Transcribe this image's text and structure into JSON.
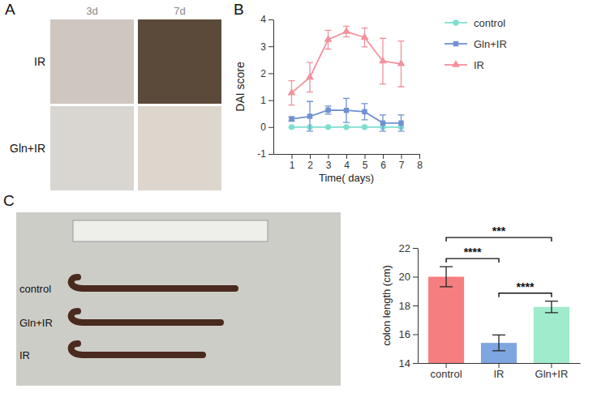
{
  "panel_letters": [
    "A",
    "B",
    "C"
  ],
  "photo_a": {
    "column_labels": [
      "3d",
      "7d"
    ],
    "row_labels": [
      "IR",
      "Gln+IR"
    ]
  },
  "photo_c": {
    "row_labels": [
      "control",
      "Gln+IR",
      "IR"
    ]
  },
  "chart_data": [
    {
      "type": "line",
      "x_label": "Time( days)",
      "y_label": "DAI score",
      "x": [
        1,
        2,
        3,
        4,
        5,
        6,
        7
      ],
      "xlim": [
        0,
        8
      ],
      "xticks": [
        1,
        2,
        3,
        4,
        5,
        6,
        7,
        8
      ],
      "ylim": [
        -1,
        4
      ],
      "yticks": [
        -1,
        0,
        1,
        2,
        3,
        4
      ],
      "legend": "right",
      "series": [
        {
          "name": "control",
          "color": "#7fdfcf",
          "marker": "circle",
          "values": [
            0,
            0,
            0,
            0,
            0,
            0,
            0
          ],
          "errors": [
            0,
            0,
            0,
            0,
            0,
            0,
            0
          ]
        },
        {
          "name": "Gln+IR",
          "color": "#7091d0",
          "marker": "square",
          "values": [
            0.3,
            0.4,
            0.63,
            0.62,
            0.57,
            0.15,
            0.15
          ],
          "errors": [
            0.08,
            0.55,
            0.15,
            0.45,
            0.3,
            0.3,
            0.3
          ]
        },
        {
          "name": "IR",
          "color": "#f3919e",
          "marker": "triangle",
          "values": [
            1.27,
            1.85,
            3.25,
            3.55,
            3.33,
            2.45,
            2.35
          ],
          "errors": [
            0.45,
            0.55,
            0.35,
            0.2,
            0.35,
            0.85,
            0.85
          ]
        }
      ]
    },
    {
      "type": "bar",
      "y_label": "colon length (cm)",
      "categories": [
        "control",
        "IR",
        "Gln+IR"
      ],
      "values": [
        20.0,
        15.4,
        17.9
      ],
      "errors": [
        0.7,
        0.55,
        0.4
      ],
      "colors": [
        "#f57e80",
        "#7ea6e0",
        "#a0ebcc"
      ],
      "ylim": [
        14,
        22
      ],
      "yticks": [
        14,
        16,
        18,
        20,
        22
      ],
      "annotations": [
        {
          "text": "****",
          "between": [
            "control",
            "IR"
          ]
        },
        {
          "text": "***",
          "between": [
            "control",
            "Gln+IR"
          ]
        },
        {
          "text": "****",
          "between": [
            "IR",
            "Gln+IR"
          ]
        }
      ]
    }
  ]
}
